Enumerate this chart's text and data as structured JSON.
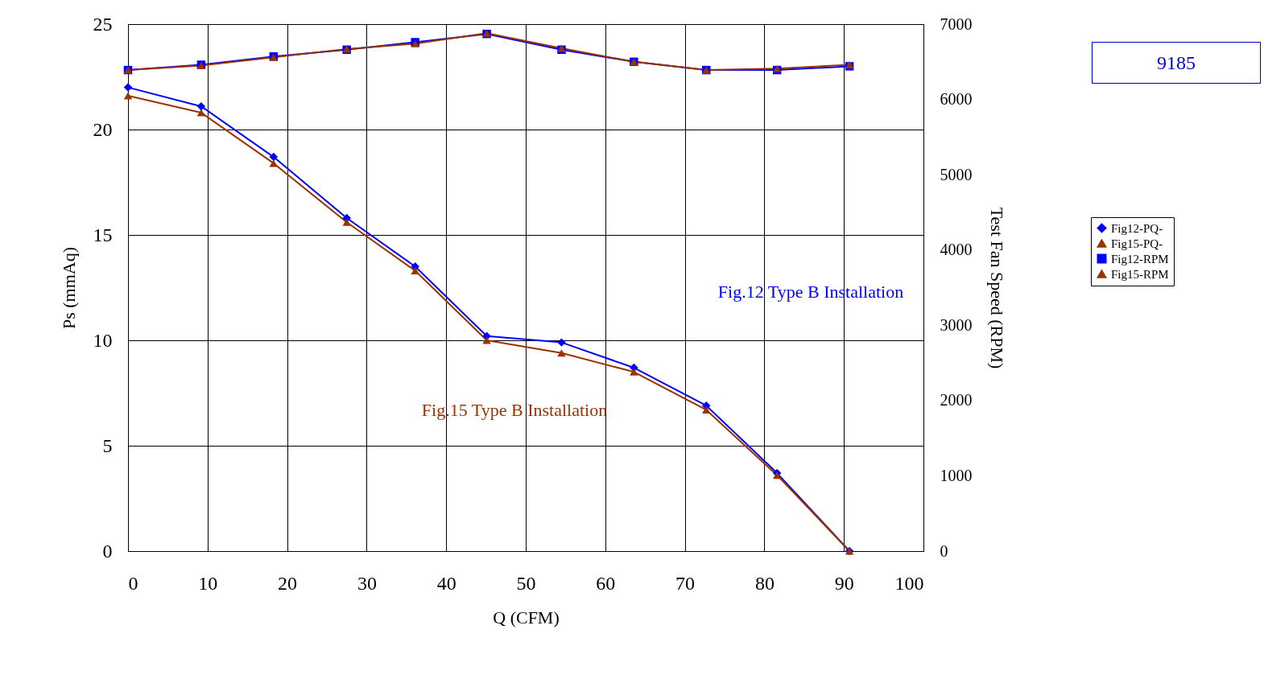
{
  "chart_data": {
    "type": "line",
    "xlabel": "Q (CFM)",
    "ylabel": "Ps (mmAq)",
    "y2label": "Test Fan Speed (RPM)",
    "x": [
      0,
      9.2,
      18.3,
      27.5,
      36.1,
      45.1,
      54.5,
      63.6,
      72.7,
      81.6,
      90.7
    ],
    "xlim": [
      0,
      100
    ],
    "xticks": [
      0,
      10,
      20,
      30,
      40,
      50,
      60,
      70,
      80,
      90,
      100
    ],
    "ylim": [
      0,
      25
    ],
    "yticks": [
      0,
      5,
      10,
      15,
      20,
      25
    ],
    "y2lim": [
      0,
      7000
    ],
    "y2ticks": [
      0,
      1000,
      2000,
      3000,
      4000,
      5000,
      6000,
      7000
    ],
    "grid": true,
    "legend": "right",
    "line_style": "solid",
    "series": [
      {
        "name": "Fig12-PQ-",
        "color": "#0000ff",
        "marker": "diamond",
        "values": [
          22.0,
          21.1,
          18.7,
          15.8,
          13.5,
          10.2,
          9.9,
          8.7,
          6.9,
          3.7,
          0
        ]
      },
      {
        "name": "Fig15-PQ-",
        "color": "#993300",
        "marker": "triangle",
        "values": [
          21.6,
          20.8,
          18.4,
          15.6,
          13.3,
          10.0,
          9.4,
          8.5,
          6.7,
          3.6,
          0
        ]
      },
      {
        "name": "Fig12-RPM",
        "color": "#0000ff",
        "marker": "square",
        "axis": "y2",
        "values": [
          6390,
          6460,
          6570,
          6660,
          6760,
          6870,
          6660,
          6500,
          6390,
          6390,
          6440
        ]
      },
      {
        "name": "Fig15-RPM",
        "color": "#993300",
        "marker": "triangle",
        "axis": "y2",
        "values": [
          6390,
          6450,
          6560,
          6670,
          6740,
          6880,
          6680,
          6500,
          6390,
          6410,
          6460
        ]
      }
    ],
    "annotations": [
      "Fig.12 Type B Installation",
      "Fig.15 Type B Installation",
      "9185"
    ]
  }
}
